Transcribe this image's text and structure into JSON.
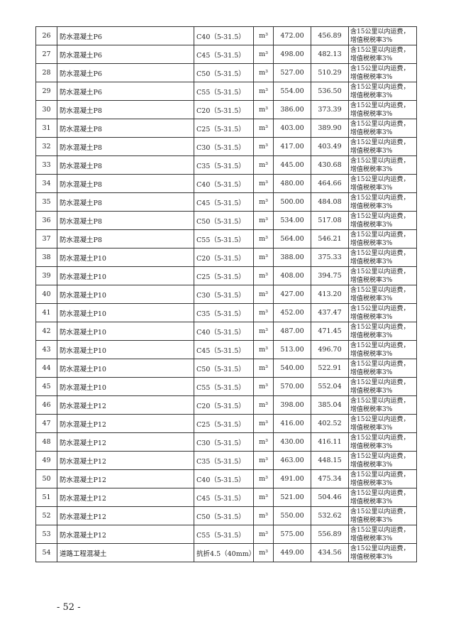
{
  "note_line1": "含15公里以内运费，",
  "note_line2": "增值税税率3%",
  "rows": [
    {
      "no": "26",
      "name": "防水混凝土P6",
      "spec": "C40（5-31.5）",
      "unit": "m³",
      "price_a": "472.00",
      "price_b": "456.89"
    },
    {
      "no": "27",
      "name": "防水混凝土P6",
      "spec": "C45（5-31.5）",
      "unit": "m³",
      "price_a": "498.00",
      "price_b": "482.13"
    },
    {
      "no": "28",
      "name": "防水混凝土P6",
      "spec": "C50（5-31.5）",
      "unit": "m³",
      "price_a": "527.00",
      "price_b": "510.29"
    },
    {
      "no": "29",
      "name": "防水混凝土P6",
      "spec": "C55（5-31.5）",
      "unit": "m³",
      "price_a": "554.00",
      "price_b": "536.50"
    },
    {
      "no": "30",
      "name": "防水混凝土P8",
      "spec": "C20（5-31.5）",
      "unit": "m³",
      "price_a": "386.00",
      "price_b": "373.39"
    },
    {
      "no": "31",
      "name": "防水混凝土P8",
      "spec": "C25（5-31.5）",
      "unit": "m³",
      "price_a": "403.00",
      "price_b": "389.90"
    },
    {
      "no": "32",
      "name": "防水混凝土P8",
      "spec": "C30（5-31.5）",
      "unit": "m³",
      "price_a": "417.00",
      "price_b": "403.49"
    },
    {
      "no": "33",
      "name": "防水混凝土P8",
      "spec": "C35（5-31.5）",
      "unit": "m³",
      "price_a": "445.00",
      "price_b": "430.68"
    },
    {
      "no": "34",
      "name": "防水混凝土P8",
      "spec": "C40（5-31.5）",
      "unit": "m³",
      "price_a": "480.00",
      "price_b": "464.66"
    },
    {
      "no": "35",
      "name": "防水混凝土P8",
      "spec": "C45（5-31.5）",
      "unit": "m³",
      "price_a": "500.00",
      "price_b": "484.08"
    },
    {
      "no": "36",
      "name": "防水混凝土P8",
      "spec": "C50（5-31.5）",
      "unit": "m³",
      "price_a": "534.00",
      "price_b": "517.08"
    },
    {
      "no": "37",
      "name": "防水混凝土P8",
      "spec": "C55（5-31.5）",
      "unit": "m³",
      "price_a": "564.00",
      "price_b": "546.21"
    },
    {
      "no": "38",
      "name": "防水混凝土P10",
      "spec": "C20（5-31.5）",
      "unit": "m³",
      "price_a": "388.00",
      "price_b": "375.33"
    },
    {
      "no": "39",
      "name": "防水混凝土P10",
      "spec": "C25（5-31.5）",
      "unit": "m³",
      "price_a": "408.00",
      "price_b": "394.75"
    },
    {
      "no": "40",
      "name": "防水混凝土P10",
      "spec": "C30（5-31.5）",
      "unit": "m³",
      "price_a": "427.00",
      "price_b": "413.20"
    },
    {
      "no": "41",
      "name": "防水混凝土P10",
      "spec": "C35（5-31.5）",
      "unit": "m³",
      "price_a": "452.00",
      "price_b": "437.47"
    },
    {
      "no": "42",
      "name": "防水混凝土P10",
      "spec": "C40（5-31.5）",
      "unit": "m³",
      "price_a": "487.00",
      "price_b": "471.45"
    },
    {
      "no": "43",
      "name": "防水混凝土P10",
      "spec": "C45（5-31.5）",
      "unit": "m³",
      "price_a": "513.00",
      "price_b": "496.70"
    },
    {
      "no": "44",
      "name": "防水混凝土P10",
      "spec": "C50（5-31.5）",
      "unit": "m³",
      "price_a": "540.00",
      "price_b": "522.91"
    },
    {
      "no": "45",
      "name": "防水混凝土P10",
      "spec": "C55（5-31.5）",
      "unit": "m³",
      "price_a": "570.00",
      "price_b": "552.04"
    },
    {
      "no": "46",
      "name": "防水混凝土P12",
      "spec": "C20（5-31.5）",
      "unit": "m³",
      "price_a": "398.00",
      "price_b": "385.04"
    },
    {
      "no": "47",
      "name": "防水混凝土P12",
      "spec": "C25（5-31.5）",
      "unit": "m³",
      "price_a": "416.00",
      "price_b": "402.52"
    },
    {
      "no": "48",
      "name": "防水混凝土P12",
      "spec": "C30（5-31.5）",
      "unit": "m³",
      "price_a": "430.00",
      "price_b": "416.11"
    },
    {
      "no": "49",
      "name": "防水混凝土P12",
      "spec": "C35（5-31.5）",
      "unit": "m³",
      "price_a": "463.00",
      "price_b": "448.15"
    },
    {
      "no": "50",
      "name": "防水混凝土P12",
      "spec": "C40（5-31.5）",
      "unit": "m³",
      "price_a": "491.00",
      "price_b": "475.34"
    },
    {
      "no": "51",
      "name": "防水混凝土P12",
      "spec": "C45（5-31.5）",
      "unit": "m³",
      "price_a": "521.00",
      "price_b": "504.46"
    },
    {
      "no": "52",
      "name": "防水混凝土P12",
      "spec": "C50（5-31.5）",
      "unit": "m³",
      "price_a": "550.00",
      "price_b": "532.62"
    },
    {
      "no": "53",
      "name": "防水混凝土P12",
      "spec": "C55（5-31.5）",
      "unit": "m³",
      "price_a": "575.00",
      "price_b": "556.89"
    },
    {
      "no": "54",
      "name": "道路工程混凝土",
      "spec": "抗折4.5（40mm）",
      "unit": "m³",
      "price_a": "449.00",
      "price_b": "434.56"
    }
  ],
  "page_number": "- 52 -"
}
